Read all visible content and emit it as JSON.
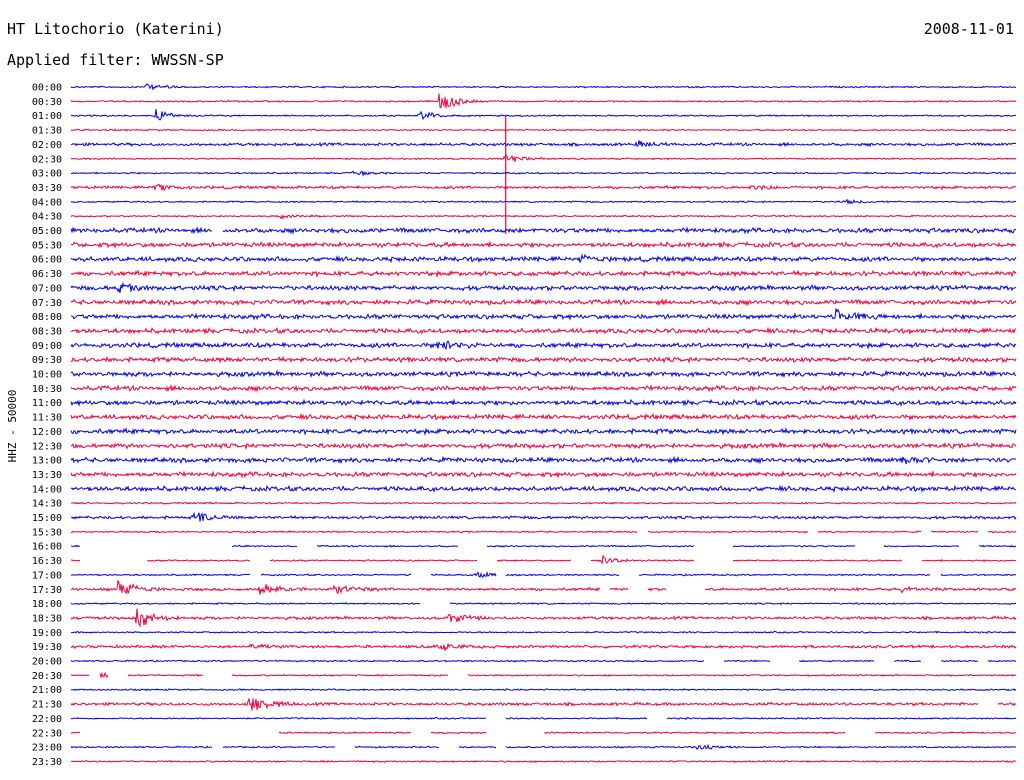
{
  "header": {
    "station_title": "HT Litochorio (Katerini)",
    "date": "2008-11-01",
    "filter_prefix": "Applied filter:",
    "filter_name": "WWSSN-SP"
  },
  "chart_data": {
    "type": "line",
    "title": "HT Litochorio (Katerini)",
    "subtitle": "Applied filter: WWSSN-SP",
    "date": "2008-11-01",
    "ylabel": "HHZ - 50000",
    "xlabel": "",
    "trace_colors": [
      "#0000e0",
      "#f0003c"
    ],
    "rows": [
      {
        "time": "00:00",
        "activity": "quiet",
        "events": [
          {
            "x": 0.08,
            "amp": 0.3
          }
        ]
      },
      {
        "time": "00:30",
        "activity": "quiet",
        "events": [
          {
            "x": 0.39,
            "amp": 1.0
          }
        ]
      },
      {
        "time": "01:00",
        "activity": "quiet",
        "events": [
          {
            "x": 0.09,
            "amp": 0.5
          },
          {
            "x": 0.37,
            "amp": 0.4
          }
        ]
      },
      {
        "time": "01:30",
        "activity": "quiet",
        "events": [
          {
            "x": 0.46,
            "amp": 1.0,
            "spike": true
          }
        ]
      },
      {
        "time": "02:00",
        "activity": "moderate",
        "events": [
          {
            "x": 0.6,
            "amp": 0.25
          }
        ]
      },
      {
        "time": "02:30",
        "activity": "quiet",
        "events": [
          {
            "x": 0.46,
            "amp": 0.5
          }
        ]
      },
      {
        "time": "03:00",
        "activity": "quiet",
        "events": [
          {
            "x": 0.3,
            "amp": 0.2
          }
        ]
      },
      {
        "time": "03:30",
        "activity": "moderate",
        "events": [
          {
            "x": 0.09,
            "amp": 0.25
          },
          {
            "x": 0.72,
            "amp": 0.2
          }
        ]
      },
      {
        "time": "04:00",
        "activity": "quiet",
        "events": [
          {
            "x": 0.82,
            "amp": 0.2
          }
        ]
      },
      {
        "time": "04:30",
        "activity": "quiet",
        "events": [
          {
            "x": 0.22,
            "amp": 0.2
          }
        ]
      },
      {
        "time": "05:00",
        "activity": "noisy",
        "gaps": [
          [
            0.15,
            0.16
          ]
        ],
        "events": []
      },
      {
        "time": "05:30",
        "activity": "noisy",
        "events": []
      },
      {
        "time": "06:00",
        "activity": "noisy",
        "events": [
          {
            "x": 0.54,
            "amp": 0.3
          }
        ]
      },
      {
        "time": "06:30",
        "activity": "noisy",
        "events": []
      },
      {
        "time": "07:00",
        "activity": "noisy",
        "events": [
          {
            "x": 0.05,
            "amp": 0.35
          }
        ]
      },
      {
        "time": "07:30",
        "activity": "noisy",
        "events": []
      },
      {
        "time": "08:00",
        "activity": "noisy",
        "events": [
          {
            "x": 0.81,
            "amp": 0.6
          }
        ]
      },
      {
        "time": "08:30",
        "activity": "noisy",
        "events": []
      },
      {
        "time": "09:00",
        "activity": "noisy",
        "events": [
          {
            "x": 0.39,
            "amp": 0.5
          }
        ]
      },
      {
        "time": "09:30",
        "activity": "noisy",
        "events": []
      },
      {
        "time": "10:00",
        "activity": "noisy",
        "events": []
      },
      {
        "time": "10:30",
        "activity": "noisy",
        "events": []
      },
      {
        "time": "11:00",
        "activity": "noisy",
        "events": []
      },
      {
        "time": "11:30",
        "activity": "noisy",
        "events": []
      },
      {
        "time": "12:00",
        "activity": "noisy",
        "events": []
      },
      {
        "time": "12:30",
        "activity": "noisy",
        "events": []
      },
      {
        "time": "13:00",
        "activity": "noisy",
        "events": [
          {
            "x": 0.88,
            "amp": 0.4
          }
        ]
      },
      {
        "time": "13:30",
        "activity": "noisy",
        "events": []
      },
      {
        "time": "14:00",
        "activity": "noisy",
        "events": []
      },
      {
        "time": "14:30",
        "activity": "quiet",
        "events": []
      },
      {
        "time": "15:00",
        "activity": "moderate",
        "events": [
          {
            "x": 0.13,
            "amp": 0.6
          }
        ]
      },
      {
        "time": "15:30",
        "activity": "quiet",
        "gaps": [
          [
            0.6,
            0.61
          ],
          [
            0.78,
            0.79
          ],
          [
            0.9,
            0.91
          ],
          [
            0.96,
            0.97
          ]
        ],
        "events": []
      },
      {
        "time": "16:00",
        "activity": "quiet",
        "gaps": [
          [
            0.01,
            0.17
          ],
          [
            0.24,
            0.26
          ],
          [
            0.41,
            0.44
          ],
          [
            0.66,
            0.7
          ],
          [
            0.83,
            0.86
          ],
          [
            0.94,
            0.96
          ]
        ],
        "events": []
      },
      {
        "time": "16:30",
        "activity": "quiet",
        "gaps": [
          [
            0.01,
            0.08
          ],
          [
            0.19,
            0.21
          ],
          [
            0.43,
            0.45
          ],
          [
            0.53,
            0.55
          ],
          [
            0.66,
            0.7
          ],
          [
            0.88,
            0.9
          ]
        ],
        "events": [
          {
            "x": 0.56,
            "amp": 0.5
          }
        ]
      },
      {
        "time": "17:00",
        "activity": "quiet",
        "gaps": [
          [
            0.19,
            0.2
          ],
          [
            0.36,
            0.38
          ],
          [
            0.45,
            0.46
          ],
          [
            0.58,
            0.6
          ],
          [
            0.91,
            0.92
          ]
        ],
        "events": [
          {
            "x": 0.43,
            "amp": 0.3
          }
        ]
      },
      {
        "time": "17:30",
        "activity": "moderate",
        "gaps": [
          [
            0.56,
            0.57
          ],
          [
            0.59,
            0.61
          ],
          [
            0.63,
            0.67
          ]
        ],
        "events": [
          {
            "x": 0.05,
            "amp": 1.0
          },
          {
            "x": 0.2,
            "amp": 0.6
          },
          {
            "x": 0.28,
            "amp": 0.5
          },
          {
            "x": 0.88,
            "amp": 0.3
          }
        ]
      },
      {
        "time": "18:00",
        "activity": "quiet",
        "gaps": [
          [
            0.37,
            0.4
          ]
        ],
        "events": []
      },
      {
        "time": "18:30",
        "activity": "moderate",
        "events": [
          {
            "x": 0.07,
            "amp": 1.0
          },
          {
            "x": 0.4,
            "amp": 0.5
          }
        ]
      },
      {
        "time": "19:00",
        "activity": "quiet",
        "events": []
      },
      {
        "time": "19:30",
        "activity": "moderate",
        "events": [
          {
            "x": 0.39,
            "amp": 0.4
          },
          {
            "x": 0.19,
            "amp": 0.2
          }
        ]
      },
      {
        "time": "20:00",
        "activity": "quiet",
        "gaps": [
          [
            0.67,
            0.69
          ],
          [
            0.74,
            0.77
          ],
          [
            0.85,
            0.87
          ],
          [
            0.9,
            0.92
          ],
          [
            0.96,
            0.97
          ]
        ],
        "events": []
      },
      {
        "time": "20:30",
        "activity": "quiet",
        "gaps": [
          [
            0.02,
            0.03
          ],
          [
            0.04,
            0.06
          ],
          [
            0.14,
            0.17
          ],
          [
            0.4,
            0.42
          ]
        ],
        "events": [
          {
            "x": 0.03,
            "amp": 0.3
          }
        ]
      },
      {
        "time": "21:00",
        "activity": "quiet",
        "events": []
      },
      {
        "time": "21:30",
        "activity": "moderate",
        "gaps": [
          [
            0.96,
            0.98
          ]
        ],
        "events": [
          {
            "x": 0.19,
            "amp": 1.0
          }
        ]
      },
      {
        "time": "22:00",
        "activity": "quiet",
        "gaps": [
          [
            0.44,
            0.46
          ],
          [
            0.61,
            0.63
          ]
        ],
        "events": []
      },
      {
        "time": "22:30",
        "activity": "quiet",
        "gaps": [
          [
            0.01,
            0.2
          ],
          [
            0.2,
            0.22
          ],
          [
            0.36,
            0.38
          ],
          [
            0.44,
            0.5
          ],
          [
            0.82,
            0.85
          ]
        ],
        "events": []
      },
      {
        "time": "23:00",
        "activity": "quiet",
        "gaps": [
          [
            0.15,
            0.16
          ],
          [
            0.28,
            0.3
          ],
          [
            0.39,
            0.41
          ],
          [
            0.45,
            0.46
          ]
        ],
        "events": [
          {
            "x": 0.66,
            "amp": 0.3
          }
        ]
      },
      {
        "time": "23:30",
        "activity": "quiet",
        "events": []
      }
    ]
  }
}
